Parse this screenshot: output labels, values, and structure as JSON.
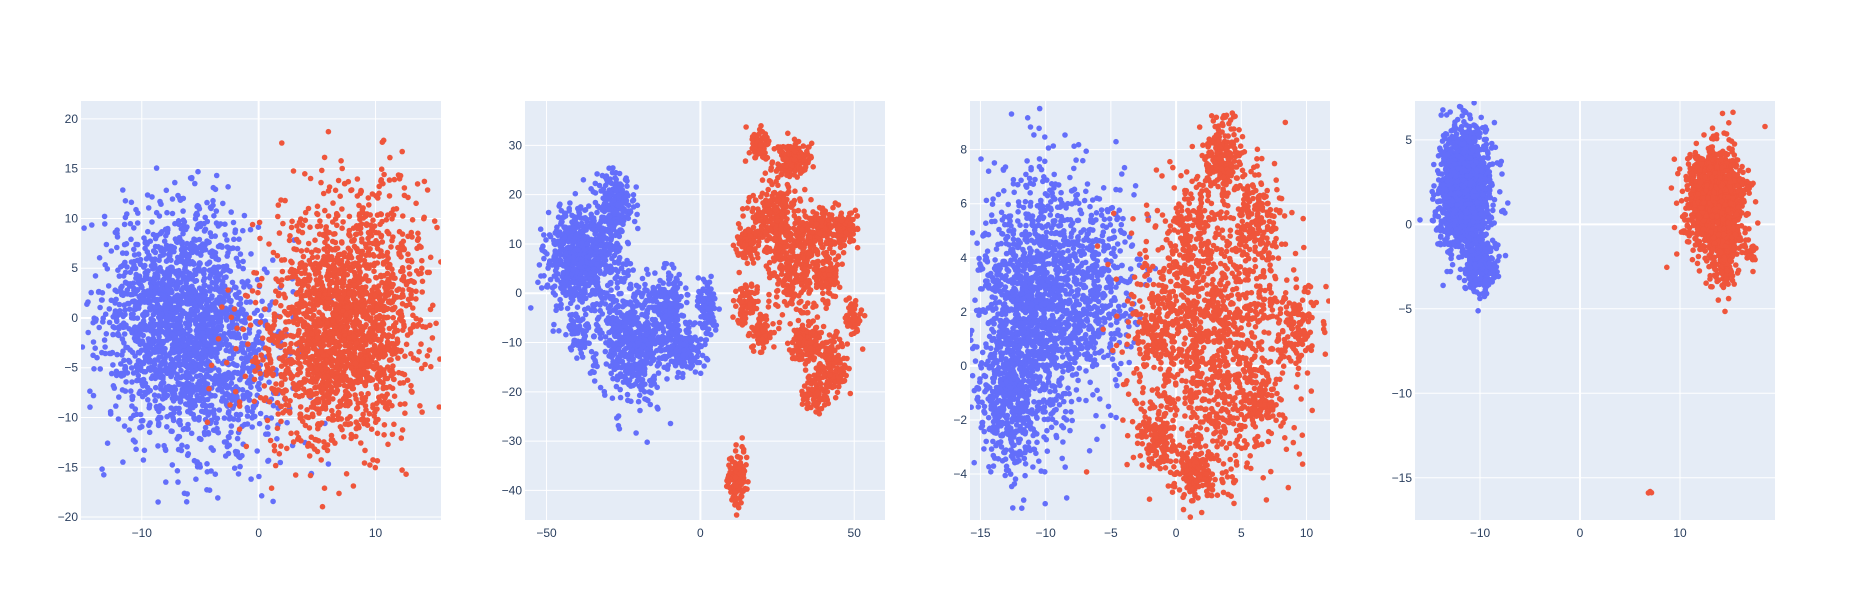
{
  "colors": {
    "series_a": "#636efa",
    "series_b": "#ef553b",
    "plot_bg": "#e5ecf6",
    "grid": "#ffffff",
    "tick_text": "#2a3f5f"
  },
  "chart_data": [
    {
      "type": "scatter",
      "xlim": [
        -15.2,
        15.6
      ],
      "ylim": [
        -20.3,
        21.8
      ],
      "xticks": [
        -10,
        0,
        10
      ],
      "xtick_labels": [
        "−10",
        "0",
        "10"
      ],
      "yticks": [
        -20,
        -15,
        -10,
        -5,
        0,
        5,
        10,
        15,
        20
      ],
      "ytick_labels": [
        "−20",
        "−15",
        "−10",
        "−5",
        "0",
        "5",
        "10",
        "15",
        "20"
      ],
      "grid": true,
      "series": [
        {
          "color": "#636efa",
          "clusters": [
            {
              "cx": -7,
              "cy": 0,
              "sx": 3.2,
              "sy": 5.5,
              "n": 1600
            },
            {
              "cx": -3,
              "cy": -5,
              "sx": 3,
              "sy": 5,
              "n": 500
            }
          ]
        },
        {
          "color": "#ef553b",
          "clusters": [
            {
              "cx": 8,
              "cy": 0,
              "sx": 3,
              "sy": 6,
              "n": 1600
            },
            {
              "cx": 4,
              "cy": -4,
              "sx": 3,
              "sy": 5,
              "n": 400
            }
          ]
        }
      ]
    },
    {
      "type": "scatter",
      "xlim": [
        -57,
        60
      ],
      "ylim": [
        -46,
        39
      ],
      "xticks": [
        -50,
        0,
        50
      ],
      "xtick_labels": [
        "−50",
        "0",
        "50"
      ],
      "yticks": [
        -40,
        -30,
        -20,
        -10,
        0,
        10,
        20,
        30
      ],
      "ytick_labels": [
        "−40",
        "−30",
        "−20",
        "−10",
        "0",
        "10",
        "20",
        "30"
      ],
      "grid": true,
      "series": [
        {
          "color": "#636efa",
          "clusters": [
            {
              "cx": -38,
              "cy": 7,
              "sx": 6,
              "sy": 5,
              "n": 700
            },
            {
              "cx": -28,
              "cy": 18,
              "sx": 3,
              "sy": 3,
              "n": 200
            },
            {
              "cx": -22,
              "cy": -10,
              "sx": 6,
              "sy": 6,
              "n": 600
            },
            {
              "cx": -10,
              "cy": -3,
              "sx": 3,
              "sy": 4,
              "n": 200
            },
            {
              "cx": -5,
              "cy": -12,
              "sx": 3,
              "sy": 2,
              "n": 150
            },
            {
              "cx": 2,
              "cy": -3,
              "sx": 1.5,
              "sy": 3,
              "n": 100
            },
            {
              "cx": -40,
              "cy": -8,
              "sx": 2,
              "sy": 2,
              "n": 60
            }
          ]
        },
        {
          "color": "#ef553b",
          "clusters": [
            {
              "cx": 19,
              "cy": 30,
              "sx": 1.5,
              "sy": 1.5,
              "n": 80
            },
            {
              "cx": 30,
              "cy": 27,
              "sx": 3,
              "sy": 2,
              "n": 150
            },
            {
              "cx": 24,
              "cy": 15,
              "sx": 4,
              "sy": 4,
              "n": 250
            },
            {
              "cx": 32,
              "cy": 5,
              "sx": 5,
              "sy": 5,
              "n": 300
            },
            {
              "cx": 15,
              "cy": 10,
              "sx": 2,
              "sy": 2,
              "n": 80
            },
            {
              "cx": 40,
              "cy": 13,
              "sx": 3,
              "sy": 2,
              "n": 120
            },
            {
              "cx": 47,
              "cy": 13,
              "sx": 2,
              "sy": 2,
              "n": 80
            },
            {
              "cx": 42,
              "cy": 3,
              "sx": 2,
              "sy": 2,
              "n": 80
            },
            {
              "cx": 15,
              "cy": -2,
              "sx": 2,
              "sy": 2,
              "n": 80
            },
            {
              "cx": 20,
              "cy": -8,
              "sx": 2,
              "sy": 2,
              "n": 80
            },
            {
              "cx": 35,
              "cy": -10,
              "sx": 3,
              "sy": 2,
              "n": 120
            },
            {
              "cx": 42,
              "cy": -15,
              "sx": 3,
              "sy": 3,
              "n": 150
            },
            {
              "cx": 37,
              "cy": -21,
              "sx": 2,
              "sy": 1.5,
              "n": 80
            },
            {
              "cx": 50,
              "cy": -5,
              "sx": 1.5,
              "sy": 1.5,
              "n": 60
            },
            {
              "cx": 12,
              "cy": -37,
              "sx": 1.5,
              "sy": 2.5,
              "n": 150
            }
          ]
        }
      ]
    },
    {
      "type": "scatter",
      "xlim": [
        -15.8,
        11.8
      ],
      "ylim": [
        -5.7,
        9.8
      ],
      "xticks": [
        -15,
        -10,
        -5,
        0,
        5,
        10
      ],
      "xtick_labels": [
        "−15",
        "−10",
        "−5",
        "0",
        "5",
        "10"
      ],
      "yticks": [
        -4,
        -2,
        0,
        2,
        4,
        6,
        8
      ],
      "ytick_labels": [
        "−4",
        "−2",
        "0",
        "2",
        "4",
        "6",
        "8"
      ],
      "grid": true,
      "series": [
        {
          "color": "#636efa",
          "clusters": [
            {
              "cx": -11,
              "cy": 2,
              "sx": 2.2,
              "sy": 2.5,
              "n": 1500
            },
            {
              "cx": -6,
              "cy": 3,
              "sx": 1.5,
              "sy": 1.8,
              "n": 400
            },
            {
              "cx": -13,
              "cy": -1.5,
              "sx": 1,
              "sy": 1.2,
              "n": 300
            }
          ]
        },
        {
          "color": "#ef553b",
          "clusters": [
            {
              "cx": 3.5,
              "cy": 7.8,
              "sx": 0.7,
              "sy": 0.7,
              "n": 200
            },
            {
              "cx": 3,
              "cy": 1,
              "sx": 3,
              "sy": 2.5,
              "n": 1200
            },
            {
              "cx": 1,
              "cy": 5,
              "sx": 1,
              "sy": 1,
              "n": 150
            },
            {
              "cx": 6,
              "cy": 5.5,
              "sx": 1,
              "sy": 0.8,
              "n": 150
            },
            {
              "cx": 9,
              "cy": 1.5,
              "sx": 0.8,
              "sy": 0.8,
              "n": 120
            },
            {
              "cx": 1.5,
              "cy": -4,
              "sx": 0.8,
              "sy": 0.5,
              "n": 150
            },
            {
              "cx": -1.5,
              "cy": -2.8,
              "sx": 0.8,
              "sy": 0.5,
              "n": 120
            },
            {
              "cx": -1.5,
              "cy": 1.5,
              "sx": 0.8,
              "sy": 0.8,
              "n": 120
            },
            {
              "cx": 6.5,
              "cy": -1.5,
              "sx": 0.8,
              "sy": 0.5,
              "n": 100
            }
          ]
        }
      ]
    },
    {
      "type": "scatter",
      "xlim": [
        -16.5,
        19.5
      ],
      "ylim": [
        -17.5,
        7.3
      ],
      "xticks": [
        -10,
        0,
        10
      ],
      "xtick_labels": [
        "−10",
        "0",
        "10"
      ],
      "yticks": [
        -15,
        -10,
        -5,
        0,
        5
      ],
      "ytick_labels": [
        "−15",
        "−10",
        "−5",
        "0",
        "5"
      ],
      "grid": true,
      "series": [
        {
          "color": "#636efa",
          "clusters": [
            {
              "cx": -11.5,
              "cy": 2,
              "sx": 1.2,
              "sy": 1.8,
              "n": 1800
            },
            {
              "cx": -10,
              "cy": -2.5,
              "sx": 0.8,
              "sy": 0.8,
              "n": 250
            }
          ]
        },
        {
          "color": "#ef553b",
          "clusters": [
            {
              "cx": 13.5,
              "cy": 1.5,
              "sx": 1.5,
              "sy": 1.5,
              "n": 1200
            },
            {
              "cx": 14.5,
              "cy": -1.5,
              "sx": 0.6,
              "sy": 1.2,
              "n": 200
            },
            {
              "cx": 17,
              "cy": -1.8,
              "sx": 0.3,
              "sy": 0.3,
              "n": 20
            },
            {
              "cx": 7,
              "cy": -15.8,
              "sx": 0.1,
              "sy": 0.2,
              "n": 3
            }
          ]
        }
      ]
    }
  ]
}
